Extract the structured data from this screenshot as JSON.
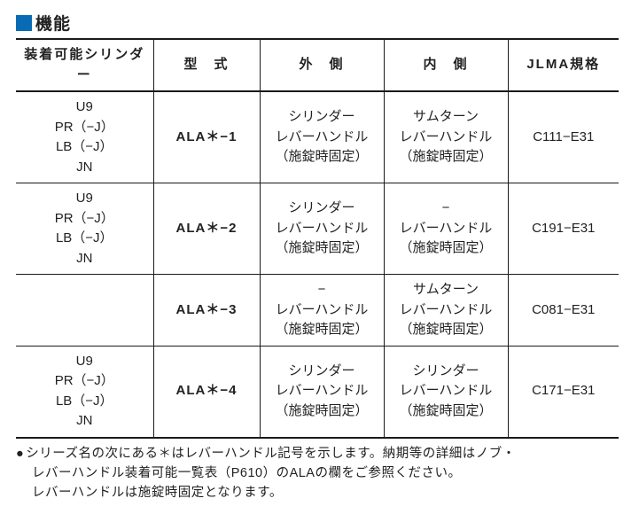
{
  "heading": {
    "marker_color": "#0a6bb5",
    "text": "機能"
  },
  "table": {
    "columns": [
      "装着可能シリンダー",
      "型　式",
      "外　側",
      "内　側",
      "JLMA規格"
    ],
    "rows": [
      {
        "cylinder": "U9\nPR（−J）\nLB（−J）\nJN",
        "model": "ALA＊−1",
        "outside": "シリンダー\nレバーハンドル\n（施錠時固定）",
        "inside": "サムターン\nレバーハンドル\n（施錠時固定）",
        "standard": "C111−E31"
      },
      {
        "cylinder": "U9\nPR（−J）\nLB（−J）\nJN",
        "model": "ALA＊−2",
        "outside": "シリンダー\nレバーハンドル\n（施錠時固定）",
        "inside": "−\nレバーハンドル\n（施錠時固定）",
        "standard": "C191−E31"
      },
      {
        "cylinder": "",
        "model": "ALA＊−3",
        "outside": "−\nレバーハンドル\n（施錠時固定）",
        "inside": "サムターン\nレバーハンドル\n（施錠時固定）",
        "standard": "C081−E31"
      },
      {
        "cylinder": "U9\nPR（−J）\nLB（−J）\nJN",
        "model": "ALA＊−4",
        "outside": "シリンダー\nレバーハンドル\n（施錠時固定）",
        "inside": "シリンダー\nレバーハンドル\n（施錠時固定）",
        "standard": "C171−E31"
      }
    ]
  },
  "footnotes": {
    "line1": "シリーズ名の次にある＊はレバーハンドル記号を示します。納期等の詳細はノブ・",
    "line2": "レバーハンドル装着可能一覧表（P610）のALAの欄をご参照ください。",
    "line3": "レバーハンドルは施錠時固定となります。"
  }
}
